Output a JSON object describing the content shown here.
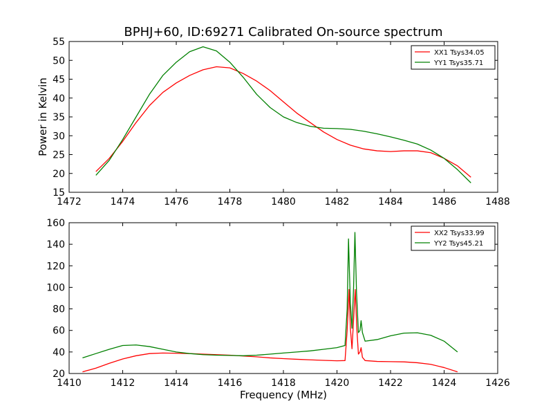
{
  "chart_data": [
    {
      "type": "line",
      "title": "BPHJ+60, ID:69271 Calibrated On-source spectrum",
      "xlabel": "",
      "ylabel": "Power in Kelvin",
      "xlim": [
        1472,
        1488
      ],
      "ylim": [
        15,
        55
      ],
      "xticks": [
        1472,
        1474,
        1476,
        1478,
        1480,
        1482,
        1484,
        1486,
        1488
      ],
      "yticks": [
        15,
        20,
        25,
        30,
        35,
        40,
        45,
        50,
        55
      ],
      "legend_position": "top-right",
      "series": [
        {
          "name": "XX1 Tsys34.05",
          "color": "#ff0000",
          "points": [
            [
              1473.0,
              20.5
            ],
            [
              1473.5,
              24.0
            ],
            [
              1474.0,
              28.5
            ],
            [
              1474.5,
              33.5
            ],
            [
              1475.0,
              38.0
            ],
            [
              1475.5,
              41.5
            ],
            [
              1476.0,
              44.0
            ],
            [
              1476.5,
              46.0
            ],
            [
              1477.0,
              47.5
            ],
            [
              1477.5,
              48.3
            ],
            [
              1478.0,
              48.0
            ],
            [
              1478.5,
              46.5
            ],
            [
              1479.0,
              44.5
            ],
            [
              1479.5,
              42.0
            ],
            [
              1480.0,
              39.0
            ],
            [
              1480.5,
              36.0
            ],
            [
              1481.0,
              33.5
            ],
            [
              1481.5,
              31.0
            ],
            [
              1482.0,
              29.0
            ],
            [
              1482.5,
              27.5
            ],
            [
              1483.0,
              26.5
            ],
            [
              1483.5,
              26.0
            ],
            [
              1484.0,
              25.8
            ],
            [
              1484.5,
              26.0
            ],
            [
              1485.0,
              26.0
            ],
            [
              1485.5,
              25.5
            ],
            [
              1486.0,
              24.0
            ],
            [
              1486.5,
              22.0
            ],
            [
              1487.0,
              19.0
            ]
          ]
        },
        {
          "name": "YY1 Tsys35.71",
          "color": "#008000",
          "points": [
            [
              1473.0,
              19.5
            ],
            [
              1473.5,
              23.5
            ],
            [
              1474.0,
              29.0
            ],
            [
              1474.5,
              35.0
            ],
            [
              1475.0,
              41.0
            ],
            [
              1475.5,
              46.0
            ],
            [
              1476.0,
              49.5
            ],
            [
              1476.5,
              52.3
            ],
            [
              1477.0,
              53.6
            ],
            [
              1477.5,
              52.5
            ],
            [
              1478.0,
              49.5
            ],
            [
              1478.5,
              45.5
            ],
            [
              1479.0,
              41.0
            ],
            [
              1479.5,
              37.5
            ],
            [
              1480.0,
              35.0
            ],
            [
              1480.5,
              33.5
            ],
            [
              1481.0,
              32.5
            ],
            [
              1481.5,
              32.0
            ],
            [
              1482.0,
              31.9
            ],
            [
              1482.5,
              31.7
            ],
            [
              1483.0,
              31.2
            ],
            [
              1483.5,
              30.5
            ],
            [
              1484.0,
              29.7
            ],
            [
              1484.5,
              28.8
            ],
            [
              1485.0,
              27.8
            ],
            [
              1485.5,
              26.2
            ],
            [
              1486.0,
              24.0
            ],
            [
              1486.5,
              21.0
            ],
            [
              1487.0,
              17.5
            ]
          ]
        }
      ]
    },
    {
      "type": "line",
      "title": "",
      "xlabel": "Frequency (MHz)",
      "ylabel": "",
      "xlim": [
        1410,
        1426
      ],
      "ylim": [
        20,
        160
      ],
      "xticks": [
        1410,
        1412,
        1414,
        1416,
        1418,
        1420,
        1422,
        1424,
        1426
      ],
      "yticks": [
        20,
        40,
        60,
        80,
        100,
        120,
        140,
        160
      ],
      "legend_position": "top-right",
      "series": [
        {
          "name": "XX2 Tsys33.99",
          "color": "#ff0000",
          "points": [
            [
              1410.5,
              21.5
            ],
            [
              1411.0,
              25.0
            ],
            [
              1411.5,
              29.5
            ],
            [
              1412.0,
              33.5
            ],
            [
              1412.5,
              36.5
            ],
            [
              1413.0,
              38.5
            ],
            [
              1413.5,
              39.0
            ],
            [
              1414.0,
              38.8
            ],
            [
              1414.5,
              38.5
            ],
            [
              1415.0,
              38.0
            ],
            [
              1415.5,
              37.5
            ],
            [
              1416.0,
              37.0
            ],
            [
              1416.5,
              36.2
            ],
            [
              1417.0,
              35.5
            ],
            [
              1417.5,
              34.5
            ],
            [
              1418.0,
              33.8
            ],
            [
              1418.5,
              33.2
            ],
            [
              1419.0,
              32.7
            ],
            [
              1419.5,
              32.2
            ],
            [
              1420.0,
              31.8
            ],
            [
              1420.3,
              32.0
            ],
            [
              1420.38,
              60.0
            ],
            [
              1420.45,
              98.0
            ],
            [
              1420.5,
              62.0
            ],
            [
              1420.56,
              43.0
            ],
            [
              1420.62,
              70.0
            ],
            [
              1420.68,
              98.0
            ],
            [
              1420.74,
              62.0
            ],
            [
              1420.8,
              38.0
            ],
            [
              1420.86,
              40.0
            ],
            [
              1420.9,
              44.0
            ],
            [
              1420.95,
              35.0
            ],
            [
              1421.05,
              32.0
            ],
            [
              1421.5,
              31.2
            ],
            [
              1422.0,
              31.0
            ],
            [
              1422.5,
              30.8
            ],
            [
              1423.0,
              30.0
            ],
            [
              1423.5,
              28.5
            ],
            [
              1424.0,
              25.5
            ],
            [
              1424.5,
              21.5
            ]
          ]
        },
        {
          "name": "YY2 Tsys45.21",
          "color": "#008000",
          "points": [
            [
              1410.5,
              34.5
            ],
            [
              1411.0,
              38.5
            ],
            [
              1411.5,
              42.5
            ],
            [
              1412.0,
              46.0
            ],
            [
              1412.5,
              46.5
            ],
            [
              1413.0,
              45.0
            ],
            [
              1413.5,
              42.5
            ],
            [
              1414.0,
              40.0
            ],
            [
              1414.5,
              38.5
            ],
            [
              1415.0,
              37.5
            ],
            [
              1415.5,
              37.0
            ],
            [
              1416.0,
              36.8
            ],
            [
              1416.5,
              36.5
            ],
            [
              1417.0,
              37.0
            ],
            [
              1417.5,
              38.0
            ],
            [
              1418.0,
              39.0
            ],
            [
              1418.5,
              40.0
            ],
            [
              1419.0,
              41.0
            ],
            [
              1419.5,
              42.5
            ],
            [
              1420.0,
              44.0
            ],
            [
              1420.3,
              46.0
            ],
            [
              1420.38,
              80.0
            ],
            [
              1420.43,
              145.0
            ],
            [
              1420.5,
              85.0
            ],
            [
              1420.56,
              62.0
            ],
            [
              1420.62,
              100.0
            ],
            [
              1420.67,
              151.0
            ],
            [
              1420.73,
              95.0
            ],
            [
              1420.8,
              58.0
            ],
            [
              1420.86,
              60.0
            ],
            [
              1420.9,
              69.0
            ],
            [
              1420.95,
              58.0
            ],
            [
              1421.05,
              50.0
            ],
            [
              1421.5,
              51.5
            ],
            [
              1422.0,
              55.0
            ],
            [
              1422.5,
              57.5
            ],
            [
              1423.0,
              57.8
            ],
            [
              1423.5,
              55.5
            ],
            [
              1424.0,
              50.0
            ],
            [
              1424.5,
              40.0
            ]
          ]
        }
      ]
    }
  ]
}
